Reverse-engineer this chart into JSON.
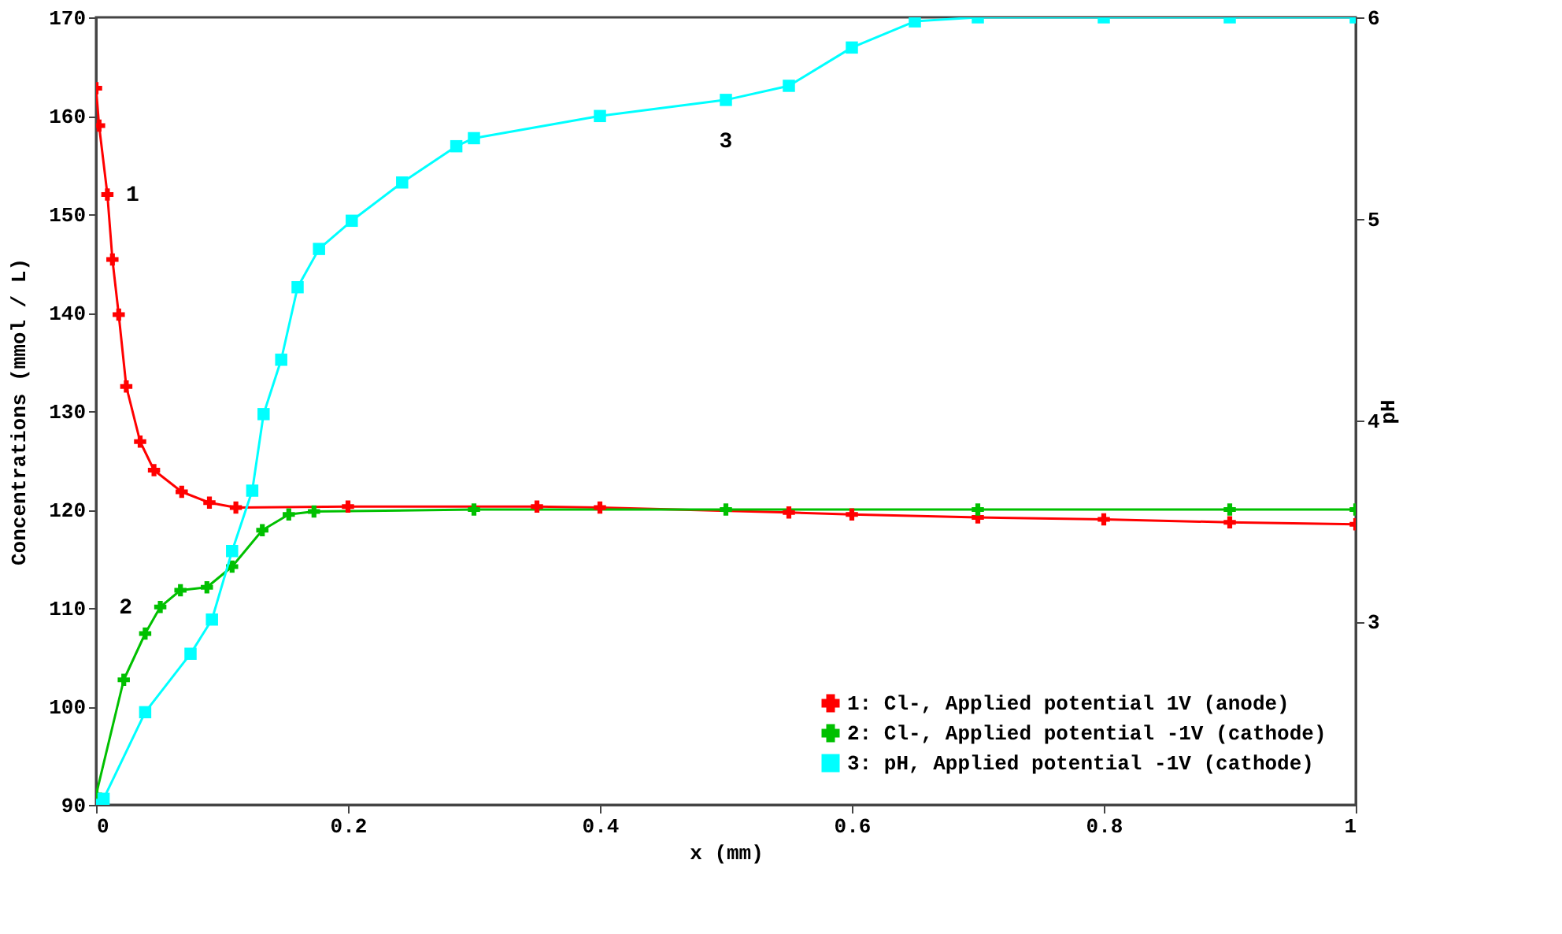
{
  "chart_data": {
    "type": "line",
    "xlabel": "x  (mm)",
    "ylabel": "Concentrations (mmol / L)",
    "y2label": "pH",
    "xlim": [
      0,
      1
    ],
    "xticks": [
      0,
      0.2,
      0.4,
      0.6,
      0.8,
      1
    ],
    "ylim": [
      90,
      170
    ],
    "yticks": [
      90,
      100,
      110,
      120,
      130,
      140,
      150,
      160,
      170
    ],
    "y2lim": [
      2.09,
      6
    ],
    "y2ticks": [
      3,
      4,
      5,
      6
    ],
    "grid": false,
    "legend": "bottom right",
    "annotations": [
      "1",
      "2",
      "3"
    ],
    "series": [
      {
        "name": "1: Cl-, Applied potential 1V (anode)",
        "color": "#ff0000",
        "marker": "cross",
        "x": [
          0,
          0.0024,
          0.009,
          0.013,
          0.018,
          0.024,
          0.035,
          0.046,
          0.068,
          0.09,
          0.111,
          0.2,
          0.35,
          0.4,
          0.55,
          0.6,
          0.7,
          0.8,
          0.9,
          1
        ],
        "values": [
          162.8,
          159,
          152,
          145.4,
          139.8,
          132.5,
          126.9,
          124,
          121.8,
          120.7,
          120.2,
          120.3,
          120.3,
          120.2,
          119.7,
          119.5,
          119.2,
          119,
          118.7,
          118.5
        ]
      },
      {
        "name": "2: Cl-, Applied potential -1V (cathode)",
        "color": "#00c000",
        "marker": "cross",
        "x": [
          0,
          0.022,
          0.039,
          0.051,
          0.067,
          0.088,
          0.108,
          0.132,
          0.153,
          0.173,
          0.3,
          0.5,
          0.7,
          0.9,
          1
        ],
        "values": [
          91,
          102.7,
          107.4,
          110.1,
          111.8,
          112.1,
          114.2,
          117.9,
          119.5,
          119.8,
          120,
          120,
          120,
          120,
          120
        ]
      },
      {
        "name": "3: pH, Applied potential -1V (cathode)",
        "color": "#00ffff",
        "marker": "square",
        "axis": "y2",
        "x": [
          0,
          0.006,
          0.039,
          0.075,
          0.092,
          0.108,
          0.124,
          0.133,
          0.147,
          0.16,
          0.177,
          0.203,
          0.243,
          0.286,
          0.3,
          0.4,
          0.5,
          0.55,
          0.6,
          0.65,
          0.7,
          0.8,
          0.9,
          1
        ],
        "values": [
          2.09,
          2.12,
          2.55,
          2.84,
          3.01,
          3.35,
          3.65,
          4.03,
          4.3,
          4.66,
          4.85,
          4.99,
          5.18,
          5.36,
          5.4,
          5.51,
          5.59,
          5.66,
          5.85,
          5.98,
          6,
          6,
          6,
          6
        ]
      }
    ]
  }
}
